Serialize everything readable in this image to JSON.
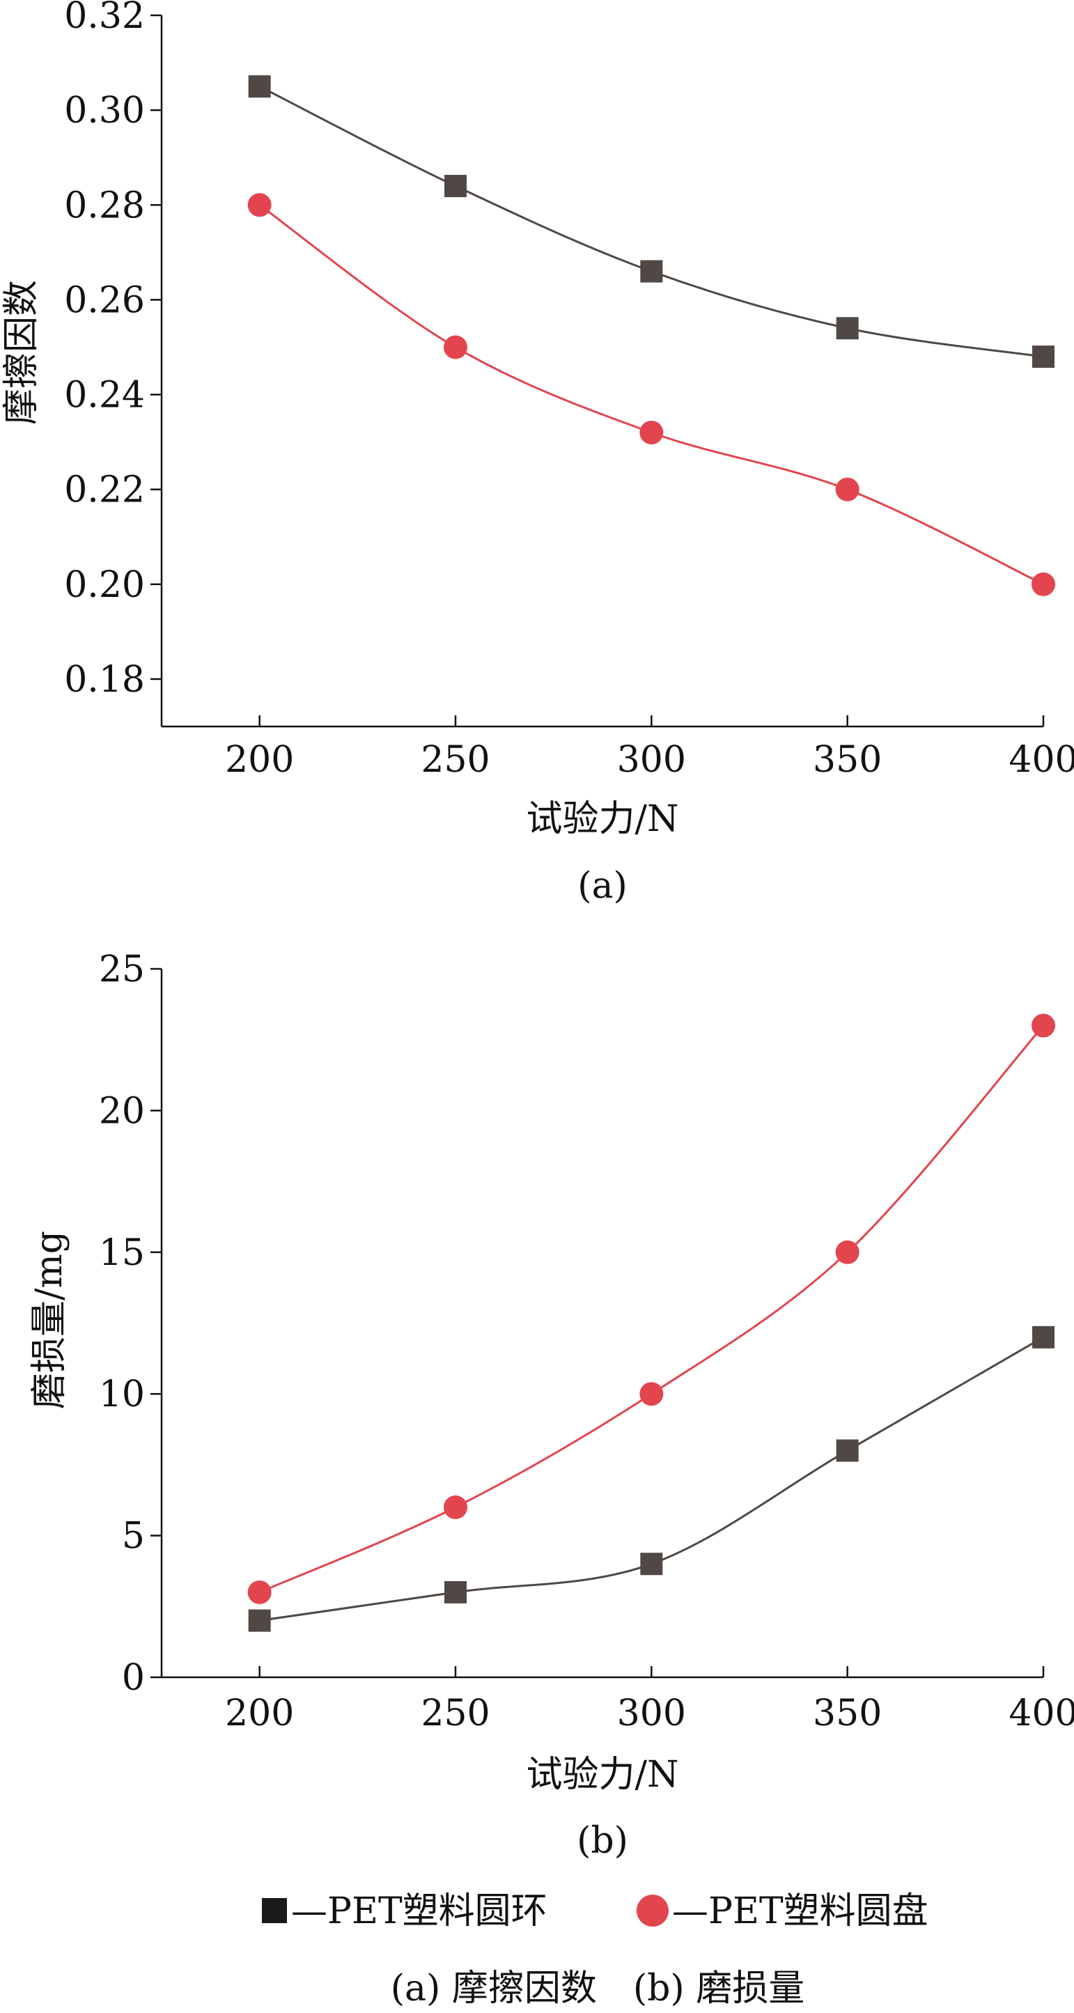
{
  "chart_data": [
    {
      "type": "line",
      "panel_label": "(a)",
      "xlabel": "试验力/N",
      "ylabel": "摩擦因数",
      "x": [
        200,
        250,
        300,
        350,
        400
      ],
      "xlim": [
        175,
        400
      ],
      "ylim": [
        0.17,
        0.32
      ],
      "xticks": [
        "200",
        "250",
        "300",
        "350",
        "400"
      ],
      "yticks": [
        "0.18",
        "0.20",
        "0.22",
        "0.24",
        "0.26",
        "0.28",
        "0.30",
        "0.32"
      ],
      "series": [
        {
          "name": "PET塑料圆环",
          "marker": "square",
          "color": "#4f4845",
          "values": [
            0.305,
            0.284,
            0.266,
            0.254,
            0.248
          ]
        },
        {
          "name": "PET塑料圆盘",
          "marker": "circle",
          "color": "#e2454e",
          "values": [
            0.28,
            0.25,
            0.232,
            0.22,
            0.2
          ]
        }
      ]
    },
    {
      "type": "line",
      "panel_label": "(b)",
      "xlabel": "试验力/N",
      "ylabel": "磨损量/mg",
      "x": [
        200,
        250,
        300,
        350,
        400
      ],
      "xlim": [
        175,
        400
      ],
      "ylim": [
        0,
        25
      ],
      "xticks": [
        "200",
        "250",
        "300",
        "350",
        "400"
      ],
      "yticks": [
        "0",
        "5",
        "10",
        "15",
        "20",
        "25"
      ],
      "series": [
        {
          "name": "PET塑料圆环",
          "marker": "square",
          "color": "#4f4845",
          "values": [
            2,
            3,
            4,
            8,
            12
          ]
        },
        {
          "name": "PET塑料圆盘",
          "marker": "circle",
          "color": "#e2454e",
          "values": [
            3,
            6,
            10,
            15,
            23
          ]
        }
      ]
    }
  ],
  "legend": {
    "items": [
      {
        "marker": "square",
        "color": "#1a1a1a",
        "label": "—PET塑料圆环"
      },
      {
        "marker": "circle",
        "color": "#e2454e",
        "label": "—PET塑料圆盘"
      }
    ]
  },
  "caption": "(a) 摩擦因数　(b) 磨损量"
}
